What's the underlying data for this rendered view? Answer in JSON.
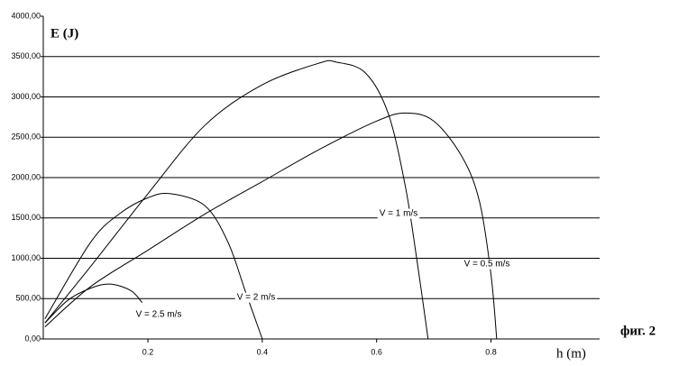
{
  "chart_data": {
    "type": "line",
    "y_label": "E (J)",
    "x_label": "h (m)",
    "figure_label": "фиг. 2",
    "xlim": [
      0.017,
      0.99
    ],
    "xticks": [
      0.2,
      0.4,
      0.6,
      0.8
    ],
    "ylim": [
      0,
      4000
    ],
    "yticks": [
      {
        "value": 0,
        "label": "0,00"
      },
      {
        "value": 500,
        "label": "500,00"
      },
      {
        "value": 1000,
        "label": "1000,00"
      },
      {
        "value": 1500,
        "label": "1500,00"
      },
      {
        "value": 2000,
        "label": "2000,00"
      },
      {
        "value": 2500,
        "label": "2500,00"
      },
      {
        "value": 3000,
        "label": "3000,00"
      },
      {
        "value": 3500,
        "label": "3500,00"
      },
      {
        "value": 4000,
        "label": "4000,00"
      }
    ],
    "grid": true,
    "series": [
      {
        "name": "V = 0.5 m/s",
        "color": "#000000",
        "x": [
          0.02,
          0.1,
          0.2,
          0.3,
          0.4,
          0.5,
          0.6,
          0.65,
          0.7,
          0.75,
          0.78,
          0.8,
          0.81
        ],
        "values": [
          150,
          650,
          1100,
          1550,
          1950,
          2350,
          2700,
          2800,
          2700,
          2250,
          1700,
          800,
          0
        ]
      },
      {
        "name": "V = 1 m/s",
        "color": "#000000",
        "x": [
          0.02,
          0.1,
          0.2,
          0.3,
          0.4,
          0.5,
          0.53,
          0.58,
          0.62,
          0.65,
          0.67,
          0.69
        ],
        "values": [
          200,
          900,
          1800,
          2650,
          3150,
          3420,
          3430,
          3300,
          2800,
          1900,
          1000,
          0
        ]
      },
      {
        "name": "V = 2 m/s",
        "color": "#000000",
        "x": [
          0.02,
          0.1,
          0.15,
          0.2,
          0.24,
          0.3,
          0.34,
          0.37,
          0.4
        ],
        "values": [
          250,
          1200,
          1550,
          1750,
          1800,
          1650,
          1200,
          600,
          0
        ]
      },
      {
        "name": "V = 2.5 m/s",
        "color": "#000000",
        "x": [
          0.02,
          0.06,
          0.1,
          0.134,
          0.17,
          0.19
        ],
        "values": [
          200,
          480,
          630,
          680,
          600,
          450
        ]
      }
    ]
  }
}
